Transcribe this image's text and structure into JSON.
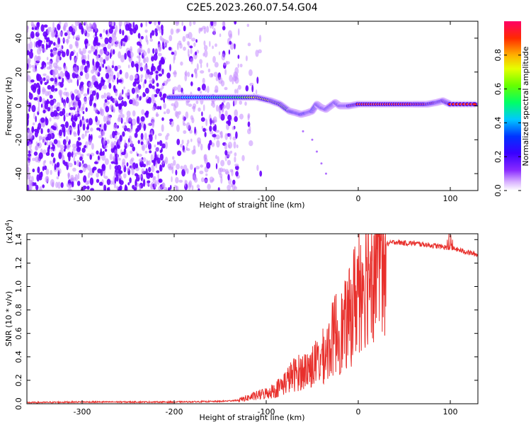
{
  "title": "C2E5.2023.260.07.54.G04",
  "colors": {
    "spectrogram_noise": "#7b1fff",
    "spectrogram_background": "#ffffff",
    "snr_line": "#e8302c",
    "axis": "#000000"
  },
  "colorbar": {
    "label": "Normalized spectral amplitude",
    "ticks": [
      "0.0",
      "0.2",
      "0.4",
      "0.6",
      "0.8"
    ],
    "tick_values": [
      0.0,
      0.2,
      0.4,
      0.6,
      0.8
    ],
    "range": [
      0,
      1
    ],
    "colormap": [
      "#ffffff",
      "#a64dff",
      "#5a00ff",
      "#0033ff",
      "#00e5ff",
      "#00ff44",
      "#b8ff00",
      "#ffcc00",
      "#ff2a00",
      "#ff0066"
    ]
  },
  "chart_data": [
    {
      "type": "heatmap",
      "xlabel": "Height of straight line (km)",
      "ylabel": "Frequency (Hz)",
      "xlim": [
        -360,
        130
      ],
      "ylim": [
        -50,
        50
      ],
      "x_ticks": [
        -300,
        -200,
        -100,
        0,
        100
      ],
      "x_tick_labels": [
        "-300",
        "-200",
        "-100",
        "0",
        "100"
      ],
      "y_ticks": [
        -40,
        -20,
        0,
        20,
        40
      ],
      "y_tick_labels": [
        "-40",
        "-20",
        "0",
        "20",
        "40"
      ],
      "noise_region": [
        -360,
        -130
      ],
      "signal_trace": {
        "x": [
          -205,
          -190,
          -170,
          -150,
          -130,
          -110,
          -95,
          -85,
          -75,
          -68,
          -62,
          -55,
          -50,
          -45,
          -40,
          -35,
          -30,
          -25,
          -20,
          -15,
          -10,
          0,
          20,
          40,
          60,
          75,
          85,
          92,
          100,
          130
        ],
        "y": [
          5,
          5,
          5,
          5,
          5,
          5,
          3,
          1,
          -3,
          -4,
          -5,
          -4,
          -3,
          1,
          -1,
          -2,
          0,
          2,
          0,
          0,
          0,
          1,
          1,
          1,
          1,
          1,
          2,
          3,
          1,
          1
        ],
        "amplitude": [
          0.4,
          0.45,
          0.45,
          0.5,
          0.55,
          0.7,
          0.75,
          0.7,
          0.6,
          0.55,
          0.5,
          0.5,
          0.45,
          0.6,
          0.55,
          0.55,
          0.6,
          0.65,
          0.8,
          0.85,
          0.85,
          0.9,
          0.9,
          0.92,
          0.92,
          0.9,
          0.85,
          0.8,
          0.9,
          0.9
        ]
      },
      "faint_branch": {
        "x": [
          -60,
          -50,
          -45,
          -40,
          -35
        ],
        "y": [
          -15,
          -20,
          -27,
          -34,
          -40
        ]
      }
    },
    {
      "type": "line",
      "xlabel": "Height of straight line (km)",
      "ylabel": "SNR (10 * v/v)",
      "y_scale_label": "(x10^4)",
      "xlim": [
        -360,
        130
      ],
      "ylim": [
        0,
        1.45
      ],
      "x_ticks": [
        -300,
        -200,
        -100,
        0,
        100
      ],
      "x_tick_labels": [
        "-300",
        "-200",
        "-100",
        "0",
        "100"
      ],
      "y_ticks": [
        0,
        0.2,
        0.4,
        0.6,
        0.8,
        1.0,
        1.2,
        1.4
      ],
      "y_tick_labels": [
        "0.0",
        "0.2",
        "0.4",
        "0.6",
        "0.8",
        "1.0",
        "1.2",
        "1.4"
      ],
      "series": [
        {
          "x": [
            -360,
            -300,
            -250,
            -200,
            -150,
            -130,
            -120,
            -110,
            -100,
            -90,
            -80,
            -70,
            -60,
            -50,
            -40,
            -35,
            -30,
            -25,
            -20,
            -15,
            -10,
            -5,
            0,
            10,
            20,
            30,
            40,
            50,
            60,
            70,
            80,
            90,
            100,
            110,
            120,
            130
          ],
          "values": [
            0.01,
            0.015,
            0.015,
            0.015,
            0.02,
            0.03,
            0.05,
            0.07,
            0.09,
            0.12,
            0.18,
            0.25,
            0.28,
            0.32,
            0.38,
            0.45,
            0.5,
            0.62,
            0.6,
            0.65,
            0.72,
            0.85,
            1.0,
            1.2,
            1.32,
            1.36,
            1.38,
            1.37,
            1.37,
            1.36,
            1.35,
            1.34,
            1.33,
            1.31,
            1.29,
            1.27
          ]
        }
      ]
    }
  ]
}
